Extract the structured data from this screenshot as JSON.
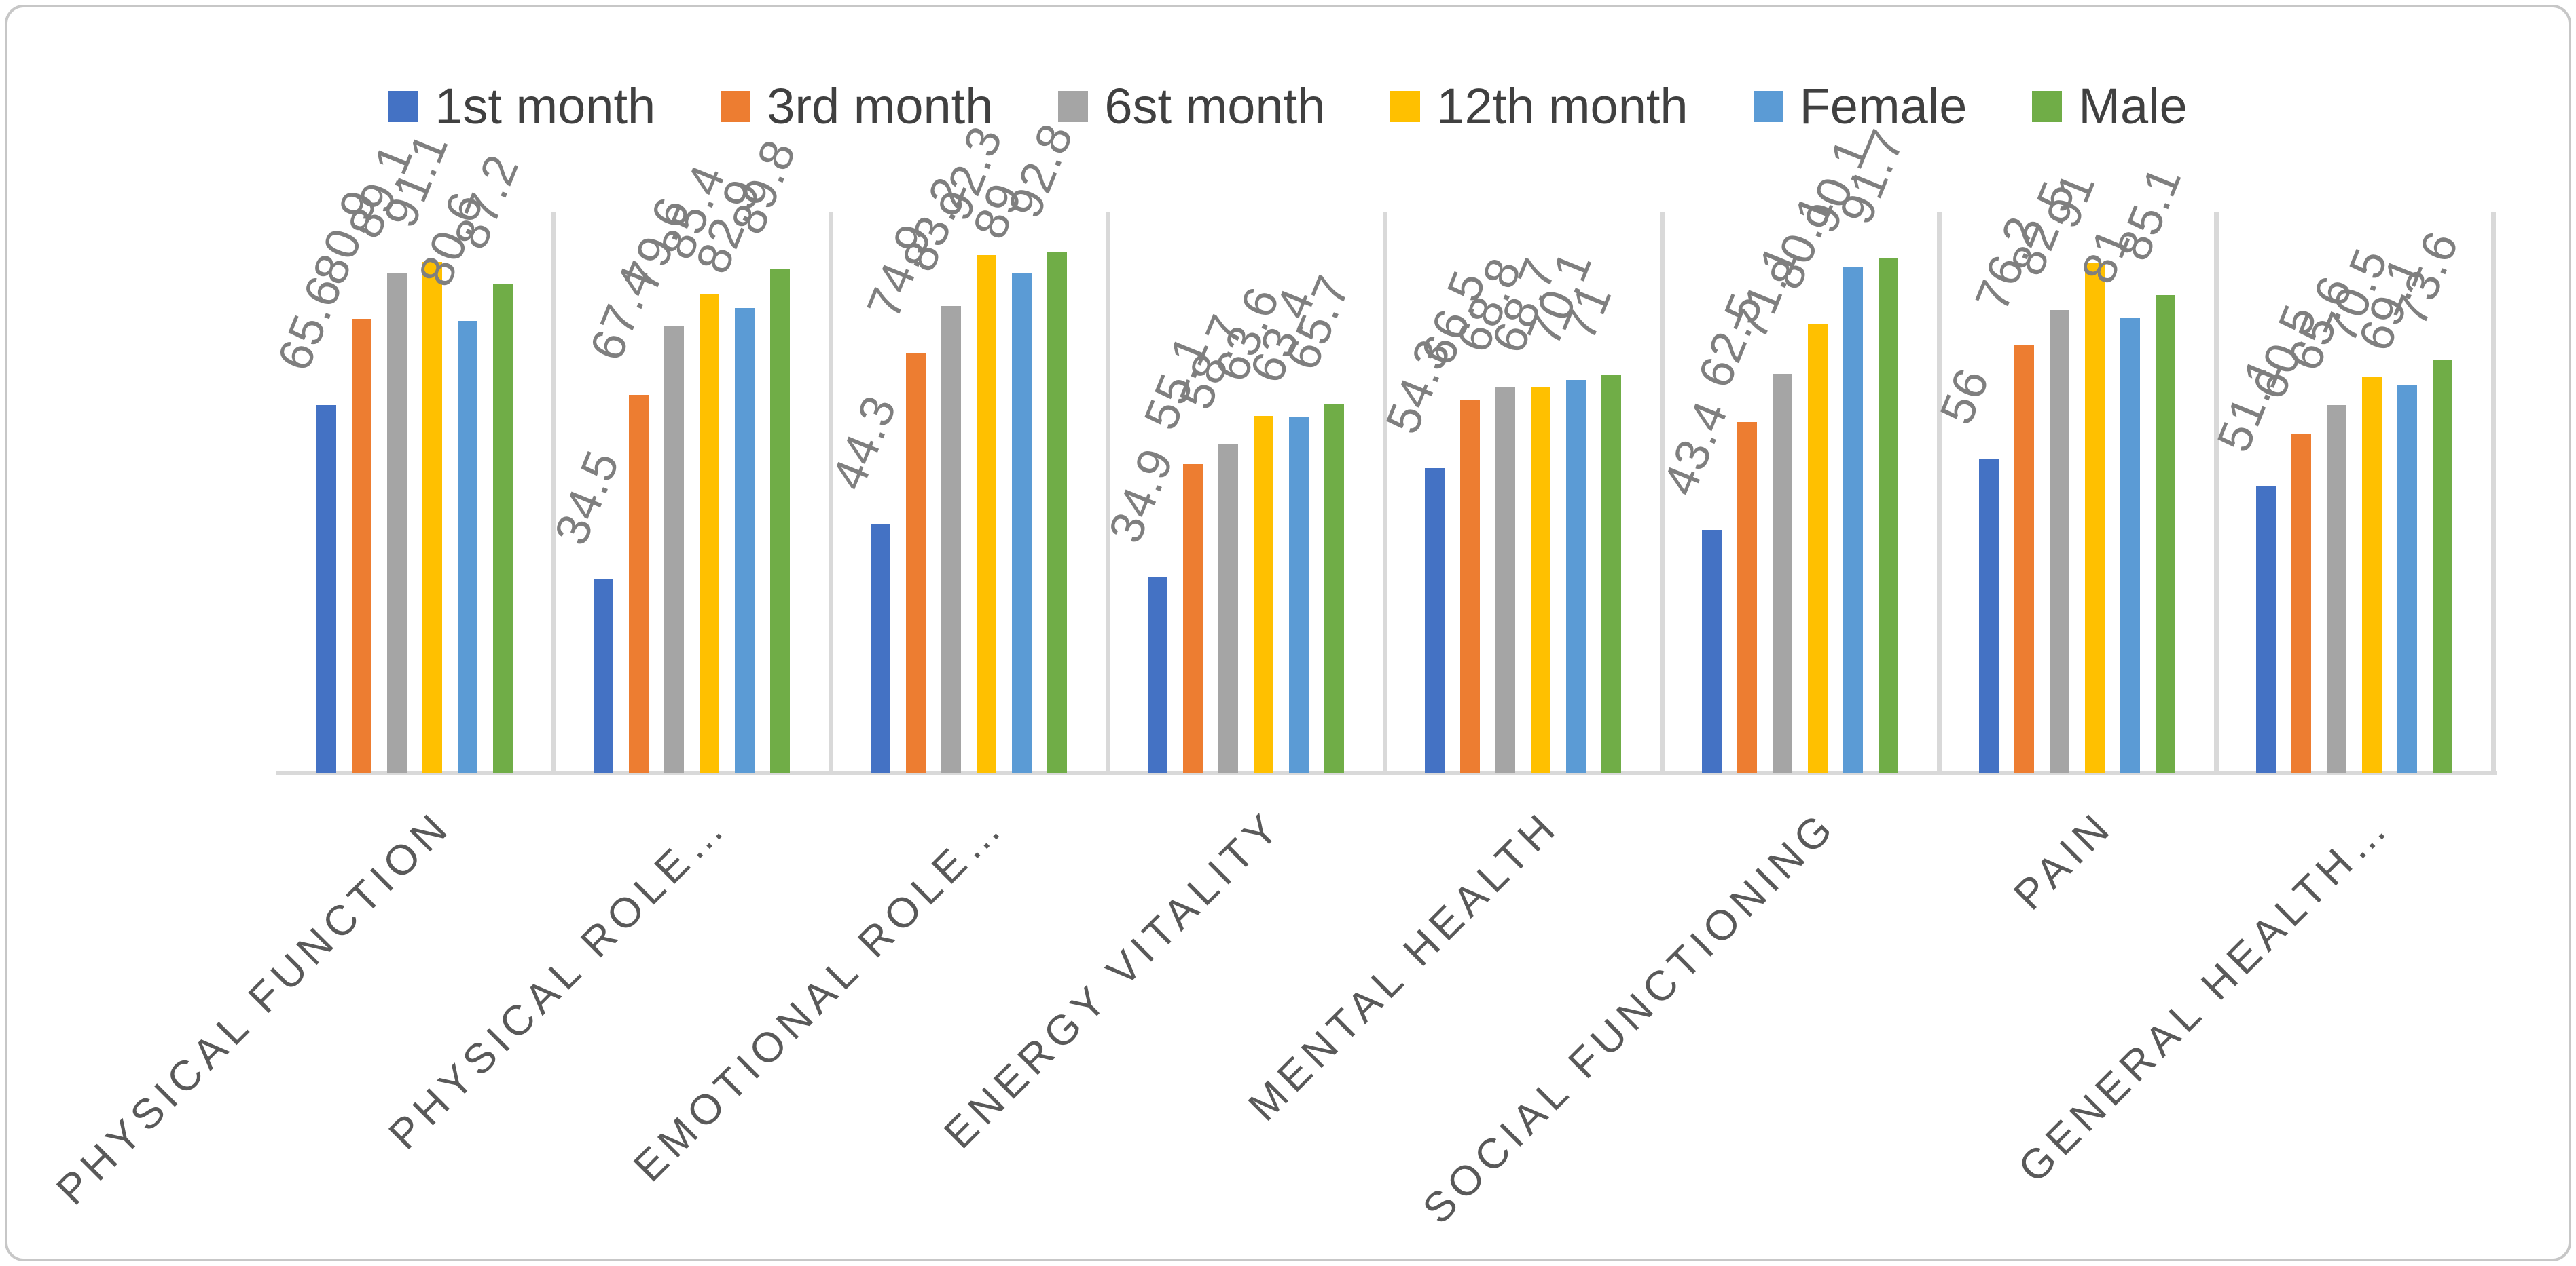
{
  "chart_data": {
    "type": "bar",
    "title": "",
    "categories": [
      "PHYSICAL FUNCTION",
      "PHYSICAL ROLE…",
      "EMOTIONAL ROLE…",
      "ENERGY VITALITY",
      "MENTAL HEALTH",
      "SOCIAL FUNCTIONING",
      "PAIN",
      "GENERAL HEALTH…"
    ],
    "series": [
      {
        "name": "1st month",
        "color": "#4472C4",
        "values": [
          65.6,
          34.5,
          44.3,
          34.9,
          54.3,
          43.4,
          56,
          51.1
        ]
      },
      {
        "name": "3rd month",
        "color": "#ED7D31",
        "values": [
          80.9,
          67.4,
          74.9,
          55.1,
          66.5,
          62.5,
          76.2,
          60.5
        ]
      },
      {
        "name": "6st month",
        "color": "#A5A5A5",
        "values": [
          89.1,
          79.6,
          83.2,
          58.7,
          68.8,
          71.1,
          82.5,
          65.6
        ]
      },
      {
        "name": "12th month",
        "color": "#FFC000",
        "values": [
          91.1,
          85.4,
          92.3,
          63.6,
          68.7,
          80.1,
          91,
          70.5
        ]
      },
      {
        "name": "Female",
        "color": "#5B9BD5",
        "values": [
          80.6,
          82.9,
          89,
          63.4,
          70.1,
          90.1,
          81,
          69.1
        ]
      },
      {
        "name": "Male",
        "color": "#70AD47",
        "values": [
          87.2,
          89.8,
          92.8,
          65.7,
          71,
          91.7,
          85.1,
          73.6
        ]
      }
    ],
    "xlabel": "",
    "ylabel": "",
    "ylim": [
      0,
      100
    ],
    "value_axis_visible": false,
    "grid": "vertical category separators only",
    "legend_position": "top",
    "data_labels": {
      "position": "outside end",
      "rotated": true,
      "color": "#7F7F7F"
    },
    "category_labels": {
      "rotation_deg": 45,
      "color": "#595959"
    },
    "colors": {
      "gridline": "#D9D9D9",
      "axis_line": "#D9D9D9",
      "frame_border": "#C7C7C7",
      "legend_text": "#404040",
      "background": "#FFFFFF"
    }
  }
}
